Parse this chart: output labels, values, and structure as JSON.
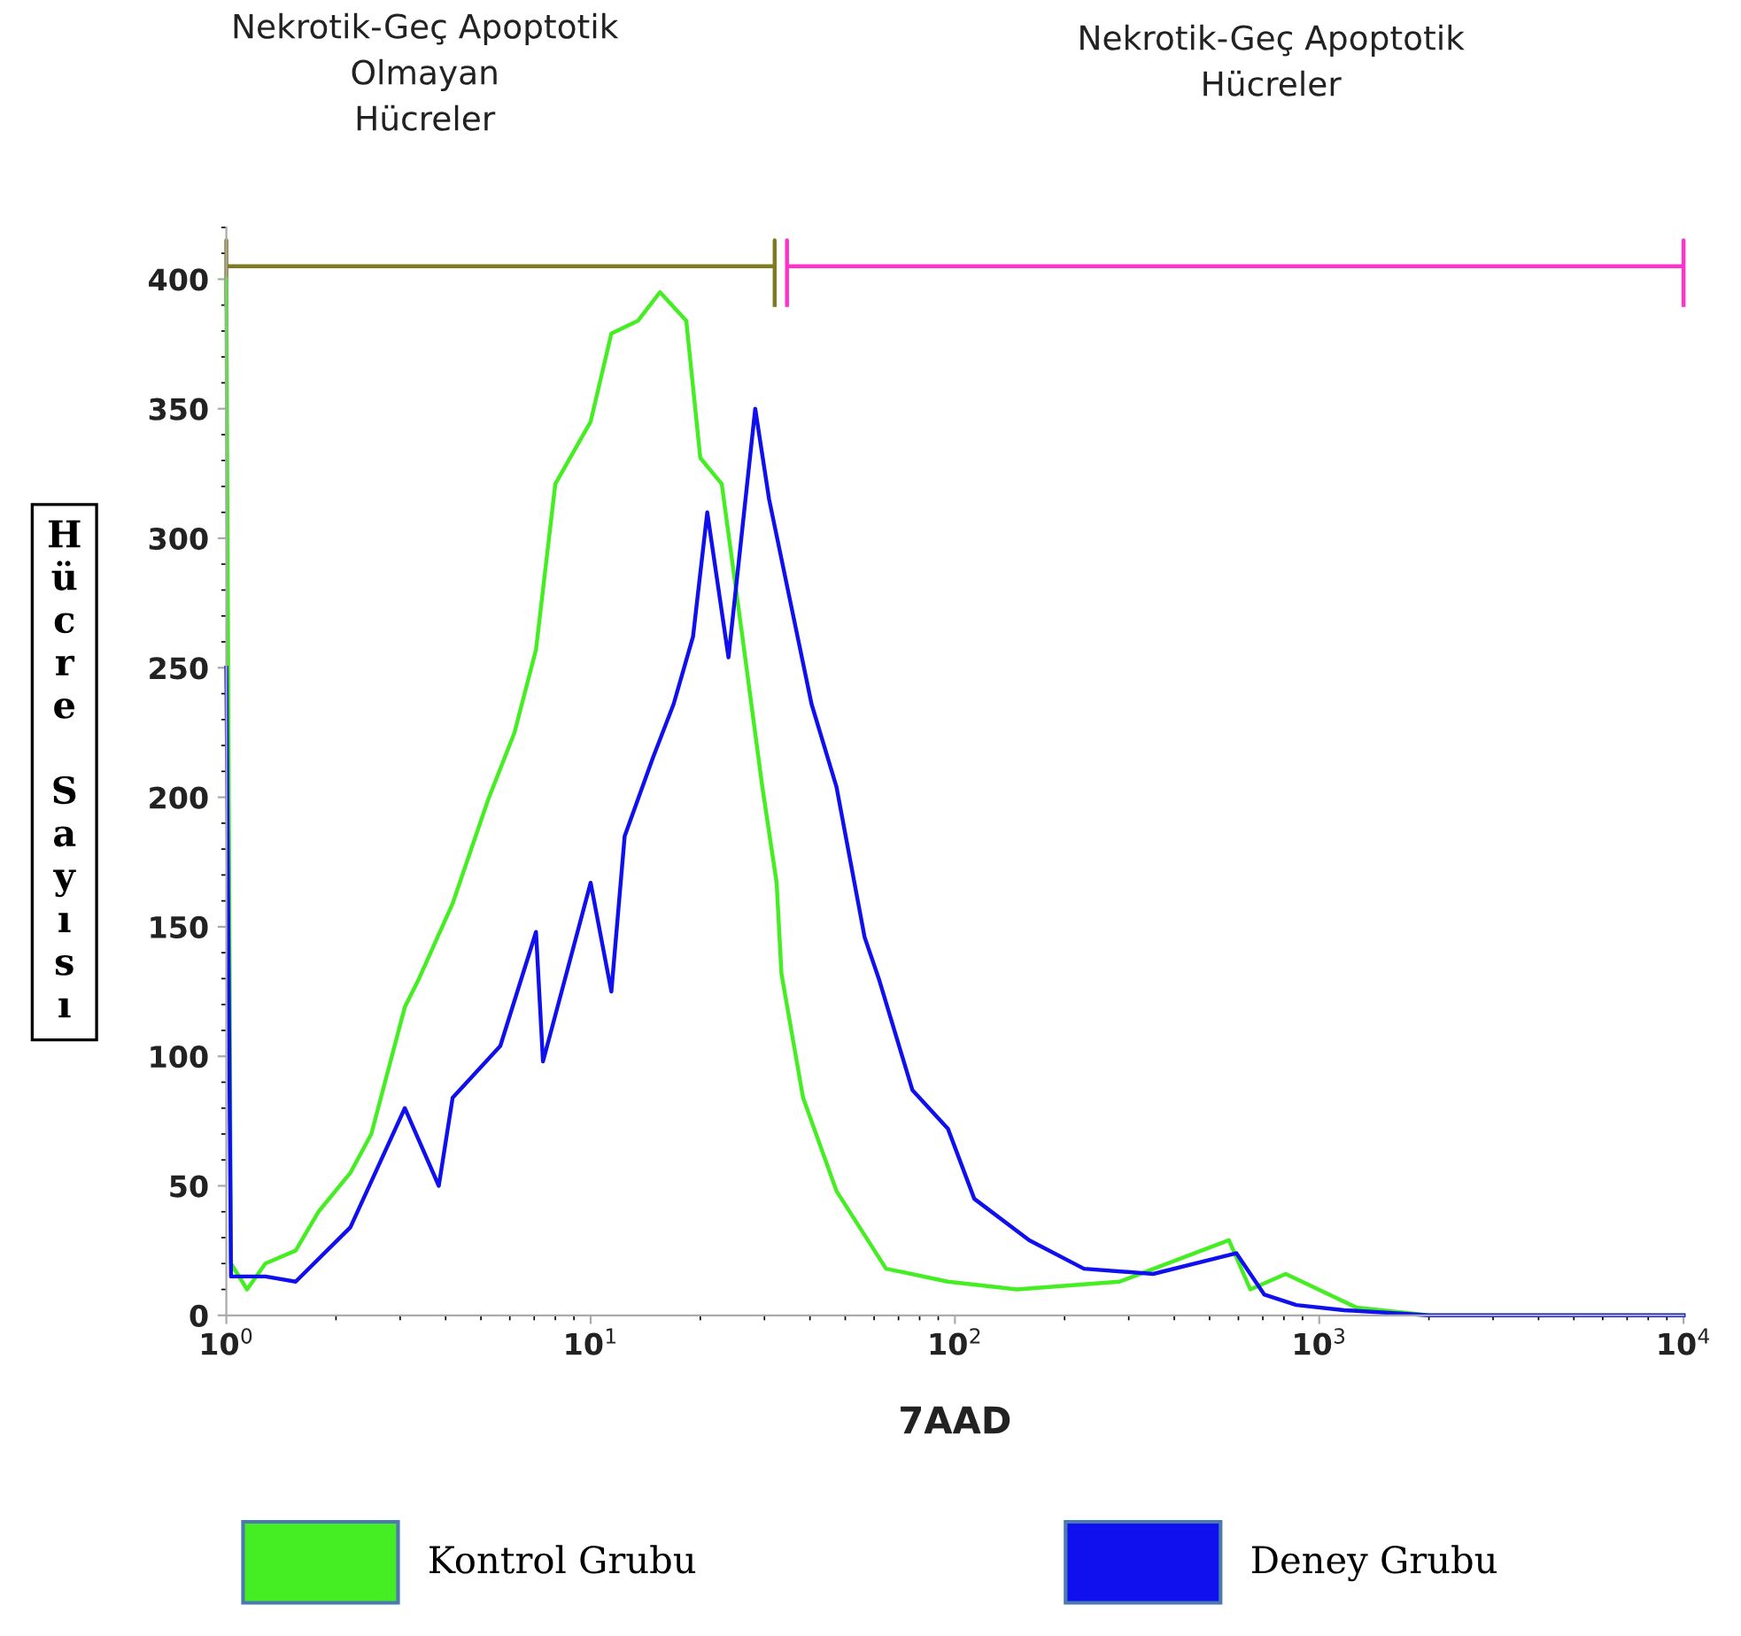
{
  "chart_data": {
    "type": "line",
    "xlabel": "7AAD",
    "ylabel": "Hücre Sayısı",
    "log": "x",
    "xlim": [
      1,
      10000
    ],
    "xticks": [
      {
        "value": 1,
        "label": "10$^{0}$"
      },
      {
        "value": 10,
        "label": "10$^{1}$"
      },
      {
        "value": 100,
        "label": "10$^{2}$"
      },
      {
        "value": 1000,
        "label": "10$^{3}$"
      },
      {
        "value": 10000,
        "label": "10$^{4}$"
      }
    ],
    "ylim": [
      0,
      420
    ],
    "yticks": [
      0,
      50,
      100,
      150,
      200,
      250,
      300,
      350,
      400
    ],
    "grid": false,
    "legend": "bottom",
    "marker": "none",
    "line_style": "solid",
    "annotations": [
      "Nekrotik-Geç Apoptotik\nOlmayan\nHücreler",
      "Nekrotik-Geç Apoptotik\nHücreler"
    ],
    "series": [
      {
        "type": "line",
        "color": "#7f7a20",
        "x": [
          1,
          1,
          1,
          32,
          32,
          32
        ],
        "values": [
          390,
          415,
          405,
          405,
          415,
          390
        ]
      },
      {
        "type": "line",
        "color": "#ff33cc",
        "x": [
          34.6,
          34.6,
          34.6,
          10000,
          10000,
          10000
        ],
        "values": [
          390,
          415,
          405,
          405,
          415,
          390
        ]
      },
      {
        "name": "Kontrol Grubu",
        "color": "#44ee22",
        "x": [
          1,
          1.03,
          1.14,
          1.28,
          1.55,
          1.79,
          2.19,
          2.5,
          3.09,
          3.38,
          4.18,
          5.23,
          6.18,
          7.08,
          8.0,
          10,
          11.4,
          13.5,
          15.5,
          18.3,
          20,
          22.9,
          26.1,
          29.6,
          32.4,
          33.4,
          38.3,
          47.3,
          64.7,
          95.7,
          148,
          283,
          565,
          647,
          809,
          1265,
          2000,
          10000
        ],
        "values": [
          400,
          20,
          10,
          20,
          25,
          40,
          55,
          70,
          119,
          130,
          159,
          199,
          225,
          257,
          321,
          345,
          379,
          384,
          395,
          384,
          331,
          321,
          262,
          204,
          167,
          132,
          84,
          48,
          18,
          13,
          10,
          13,
          29,
          10,
          16,
          3,
          0,
          0
        ]
      },
      {
        "name": "Deney Grubu",
        "color": "#1010ee",
        "x": [
          1,
          1.03,
          1.28,
          1.55,
          2.19,
          3.09,
          3.83,
          4.18,
          5.65,
          7.08,
          7.4,
          10,
          11.4,
          12.4,
          14.8,
          16.9,
          19.1,
          20.9,
          23.9,
          26.1,
          28.3,
          30.9,
          40.4,
          47.3,
          56.5,
          61.8,
          76.4,
          95.7,
          113,
          160,
          226,
          350,
          592,
          707,
          865,
          1170,
          2000,
          10000
        ],
        "values": [
          250,
          15,
          15,
          13,
          34,
          80,
          50,
          84,
          104,
          148,
          98,
          167,
          125,
          185,
          215,
          236,
          262,
          310,
          254,
          304,
          350,
          315,
          236,
          204,
          146,
          130,
          87,
          72,
          45,
          29,
          18,
          16,
          24,
          8,
          4,
          2,
          0,
          0
        ]
      }
    ]
  }
}
